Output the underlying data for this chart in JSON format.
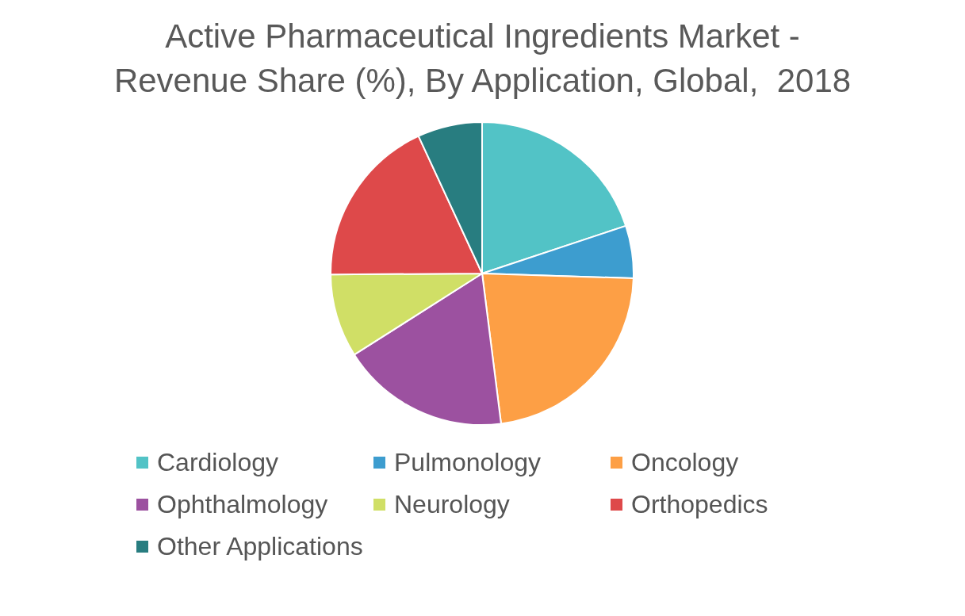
{
  "chart_data": {
    "type": "pie",
    "title": "Active Pharmaceutical Ingredients Market - Revenue Share (%), By Application, Global,  2018",
    "categories": [
      "Cardiology",
      "Pulmonology",
      "Oncology",
      "Ophthalmology",
      "Neurology",
      "Orthopedics",
      "Other Applications"
    ],
    "values": [
      19.9,
      5.6,
      22.5,
      18.0,
      8.9,
      18.2,
      6.9
    ],
    "colors": [
      "#52c3c6",
      "#3d9dcf",
      "#fd9f45",
      "#9c51a0",
      "#d0df66",
      "#de494a",
      "#287d80"
    ],
    "legend": "bottom"
  }
}
